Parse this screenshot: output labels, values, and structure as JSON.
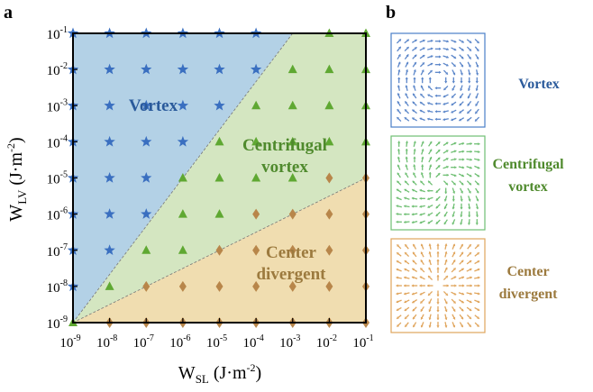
{
  "panels": {
    "a": "a",
    "b": "b"
  },
  "chart_data": {
    "type": "scatter",
    "xlabel": {
      "main": "W",
      "sub": "SL",
      "unit": " (J·m",
      "exp": "-2",
      "close": ")"
    },
    "ylabel": {
      "main": "W",
      "sub": "LV",
      "unit": " (J·m",
      "exp": "-2",
      "close": ")"
    },
    "x_scale": "log",
    "y_scale": "log",
    "xlim": [
      1e-09,
      0.1
    ],
    "ylim": [
      1e-09,
      0.1
    ],
    "tick_exponents": [
      -9,
      -8,
      -7,
      -6,
      -5,
      -4,
      -3,
      -2,
      -1
    ],
    "tick_base": "10",
    "regions": [
      {
        "name": "Vortex",
        "label": "Vortex",
        "color": "#b3d1e6",
        "text_color": "#2a5a9b"
      },
      {
        "name": "Centrifugal vortex",
        "label_lines": [
          "Centrifugal",
          "vortex"
        ],
        "color": "#d4e6c1",
        "text_color": "#4f8a2d"
      },
      {
        "name": "Center divergent",
        "label_lines": [
          "Center",
          "divergent"
        ],
        "color": "#f0ddb0",
        "text_color": "#9c7a3e"
      }
    ],
    "boundaries": [
      {
        "from": [
          1e-09,
          1e-09
        ],
        "to": [
          0.001,
          0.1
        ]
      },
      {
        "from": [
          1e-09,
          1e-09
        ],
        "to": [
          0.1,
          1e-05
        ]
      }
    ],
    "series": [
      {
        "marker": "star",
        "color": "#3a6fc0",
        "points": [
          [
            -9,
            -1
          ],
          [
            -8,
            -1
          ],
          [
            -7,
            -1
          ],
          [
            -6,
            -1
          ],
          [
            -5,
            -1
          ],
          [
            -4,
            -1
          ],
          [
            -9,
            -2
          ],
          [
            -8,
            -2
          ],
          [
            -7,
            -2
          ],
          [
            -6,
            -2
          ],
          [
            -5,
            -2
          ],
          [
            -4,
            -2
          ],
          [
            -9,
            -3
          ],
          [
            -8,
            -3
          ],
          [
            -7,
            -3
          ],
          [
            -6,
            -3
          ],
          [
            -5,
            -3
          ],
          [
            -9,
            -4
          ],
          [
            -8,
            -4
          ],
          [
            -7,
            -4
          ],
          [
            -6,
            -4
          ],
          [
            -9,
            -5
          ],
          [
            -8,
            -5
          ],
          [
            -7,
            -5
          ],
          [
            -9,
            -6
          ],
          [
            -8,
            -6
          ],
          [
            -7,
            -6
          ],
          [
            -9,
            -7
          ],
          [
            -8,
            -7
          ],
          [
            -9,
            -8
          ]
        ]
      },
      {
        "marker": "triangle",
        "color": "#5fa832",
        "points": [
          [
            -2,
            -1
          ],
          [
            -1,
            -1
          ],
          [
            -3,
            -2
          ],
          [
            -2,
            -2
          ],
          [
            -1,
            -2
          ],
          [
            -4,
            -3
          ],
          [
            -3,
            -3
          ],
          [
            -2,
            -3
          ],
          [
            -1,
            -3
          ],
          [
            -5,
            -4
          ],
          [
            -4,
            -4
          ],
          [
            -3,
            -4
          ],
          [
            -2,
            -4
          ],
          [
            -1,
            -4
          ],
          [
            -6,
            -5
          ],
          [
            -5,
            -5
          ],
          [
            -4,
            -5
          ],
          [
            -3,
            -5
          ],
          [
            -6,
            -6
          ],
          [
            -5,
            -6
          ],
          [
            -7,
            -7
          ],
          [
            -6,
            -7
          ],
          [
            -8,
            -8
          ],
          [
            -9,
            -9
          ]
        ]
      },
      {
        "marker": "diamond",
        "color": "#b8864a",
        "points": [
          [
            -2,
            -5
          ],
          [
            -1,
            -5
          ],
          [
            -4,
            -6
          ],
          [
            -3,
            -6
          ],
          [
            -2,
            -6
          ],
          [
            -1,
            -6
          ],
          [
            -5,
            -7
          ],
          [
            -4,
            -7
          ],
          [
            -3,
            -7
          ],
          [
            -2,
            -7
          ],
          [
            -1,
            -7
          ],
          [
            -7,
            -8
          ],
          [
            -6,
            -8
          ],
          [
            -5,
            -8
          ],
          [
            -4,
            -8
          ],
          [
            -3,
            -8
          ],
          [
            -2,
            -8
          ],
          [
            -1,
            -8
          ],
          [
            -8,
            -9
          ],
          [
            -7,
            -9
          ],
          [
            -6,
            -9
          ],
          [
            -5,
            -9
          ],
          [
            -4,
            -9
          ],
          [
            -3,
            -9
          ],
          [
            -2,
            -9
          ],
          [
            -1,
            -9
          ]
        ]
      }
    ]
  },
  "side_panels": [
    {
      "label": "Vortex",
      "color": "#2a5a9b",
      "arrow_color": "#5b86c9",
      "border": "#4a7fc8",
      "pattern": "vortex"
    },
    {
      "label_lines": [
        "Centrifugal",
        "vortex"
      ],
      "color": "#4f8a2d",
      "arrow_color": "#6fbf73",
      "border": "#6fbf73",
      "pattern": "spiral"
    },
    {
      "label_lines": [
        "Center",
        "divergent"
      ],
      "color": "#9c7a3e",
      "arrow_color": "#e0a55c",
      "border": "#e0a55c",
      "pattern": "radial"
    }
  ]
}
